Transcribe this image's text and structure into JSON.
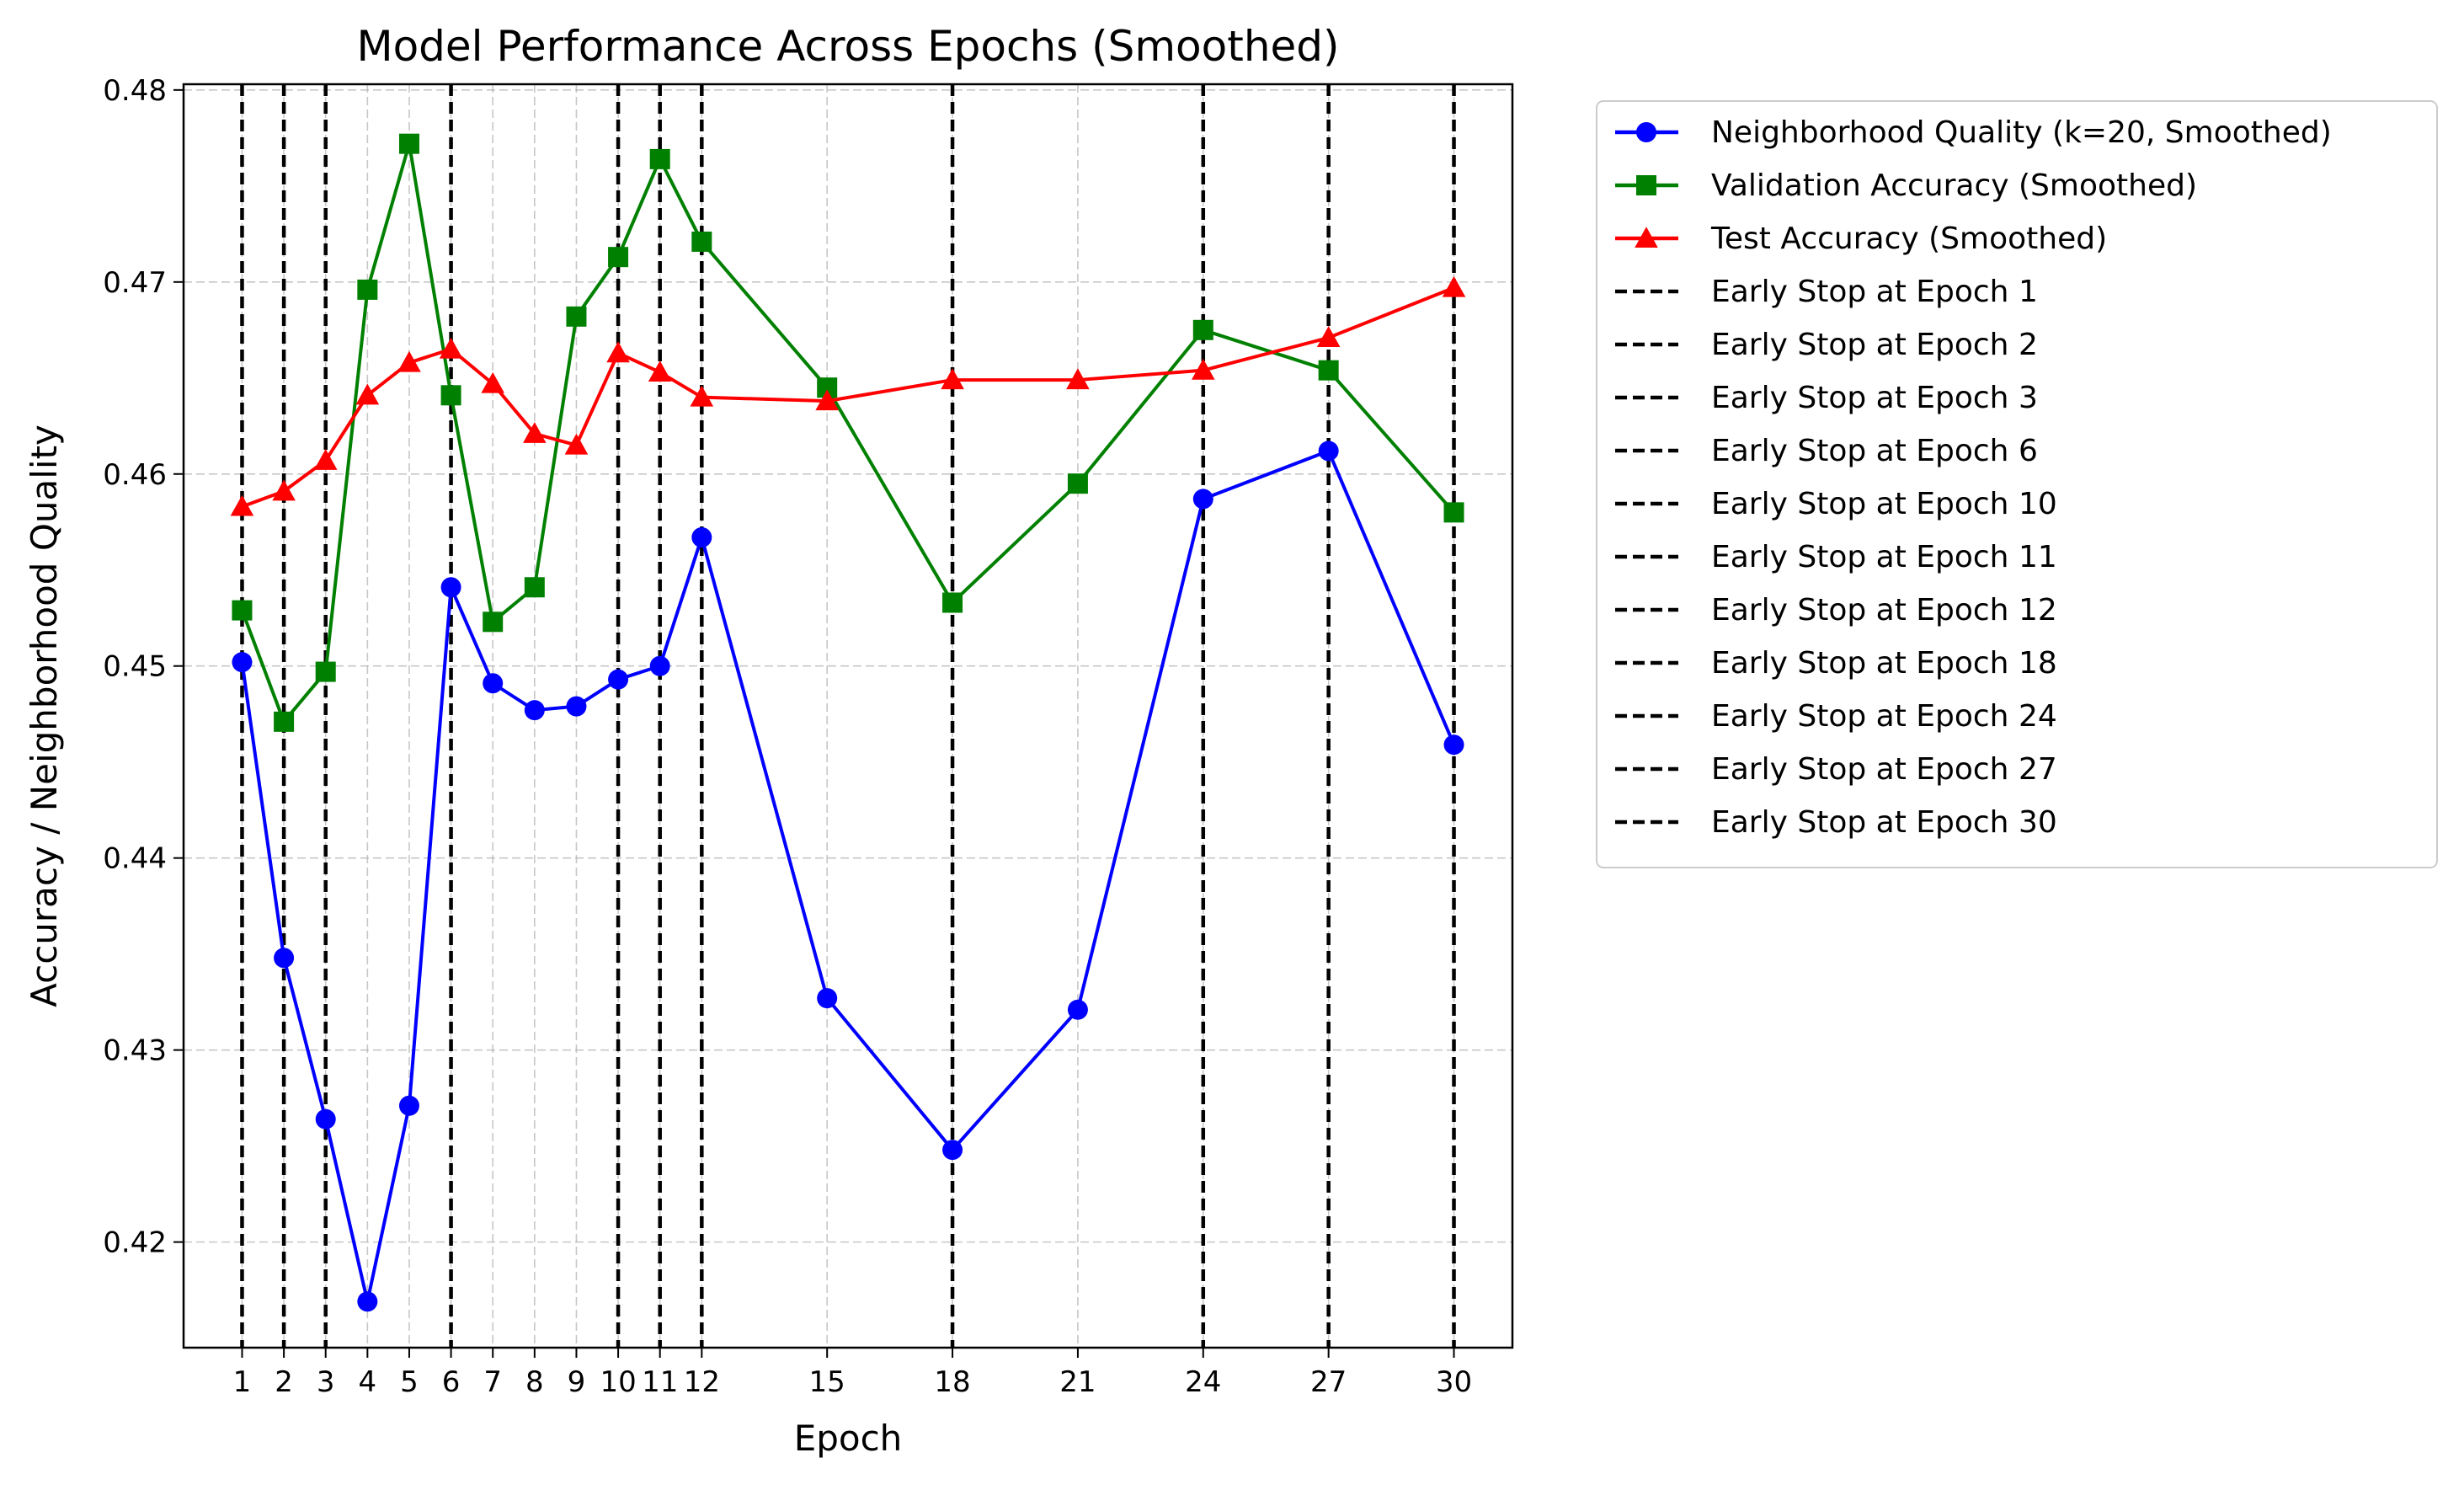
{
  "chart_data": {
    "type": "line",
    "title": "Model Performance Across Epochs (Smoothed)",
    "xlabel": "Epoch",
    "ylabel": "Accuracy / Neighborhood Quality",
    "xlim": [
      -0.4,
      31.4
    ],
    "ylim": [
      0.4145,
      0.4803
    ],
    "x": [
      1,
      2,
      3,
      4,
      5,
      6,
      7,
      8,
      9,
      10,
      11,
      12,
      15,
      18,
      21,
      24,
      27,
      30
    ],
    "xticks": [
      1,
      2,
      3,
      4,
      5,
      6,
      7,
      8,
      9,
      10,
      11,
      12,
      15,
      18,
      21,
      24,
      27,
      30
    ],
    "yticks": [
      0.42,
      0.43,
      0.44,
      0.45,
      0.46,
      0.47,
      0.48
    ],
    "grid": true,
    "legend_position": "outside-right",
    "series": [
      {
        "name": "Neighborhood Quality (k=20, Smoothed)",
        "color": "#0000ff",
        "marker": "circle",
        "values": [
          0.4502,
          0.4348,
          0.4264,
          0.4169,
          0.4271,
          0.4541,
          0.4491,
          0.4477,
          0.4479,
          0.4493,
          0.45,
          0.4567,
          0.4327,
          0.4248,
          0.4321,
          0.4587,
          0.4612,
          0.4459
        ]
      },
      {
        "name": "Validation Accuracy (Smoothed)",
        "color": "#008000",
        "marker": "square",
        "values": [
          0.4529,
          0.4471,
          0.4497,
          0.4696,
          0.4772,
          0.4641,
          0.4523,
          0.4541,
          0.4682,
          0.4713,
          0.4764,
          0.4721,
          0.4645,
          0.4533,
          0.4595,
          0.4675,
          0.4654,
          0.458
        ]
      },
      {
        "name": "Test Accuracy (Smoothed)",
        "color": "#ff0000",
        "marker": "triangle",
        "values": [
          0.4583,
          0.4591,
          0.4607,
          0.4641,
          0.4658,
          0.4665,
          0.4647,
          0.4621,
          0.4615,
          0.4663,
          0.4653,
          0.464,
          0.4638,
          0.4649,
          0.4649,
          0.4654,
          0.4671,
          0.4697
        ]
      }
    ],
    "early_stops": [
      {
        "epoch": 1,
        "label": "Early Stop at Epoch 1"
      },
      {
        "epoch": 2,
        "label": "Early Stop at Epoch 2"
      },
      {
        "epoch": 3,
        "label": "Early Stop at Epoch 3"
      },
      {
        "epoch": 6,
        "label": "Early Stop at Epoch 6"
      },
      {
        "epoch": 10,
        "label": "Early Stop at Epoch 10"
      },
      {
        "epoch": 11,
        "label": "Early Stop at Epoch 11"
      },
      {
        "epoch": 12,
        "label": "Early Stop at Epoch 12"
      },
      {
        "epoch": 18,
        "label": "Early Stop at Epoch 18"
      },
      {
        "epoch": 24,
        "label": "Early Stop at Epoch 24"
      },
      {
        "epoch": 27,
        "label": "Early Stop at Epoch 27"
      },
      {
        "epoch": 30,
        "label": "Early Stop at Epoch 30"
      }
    ],
    "early_stop_color": "#000000"
  }
}
